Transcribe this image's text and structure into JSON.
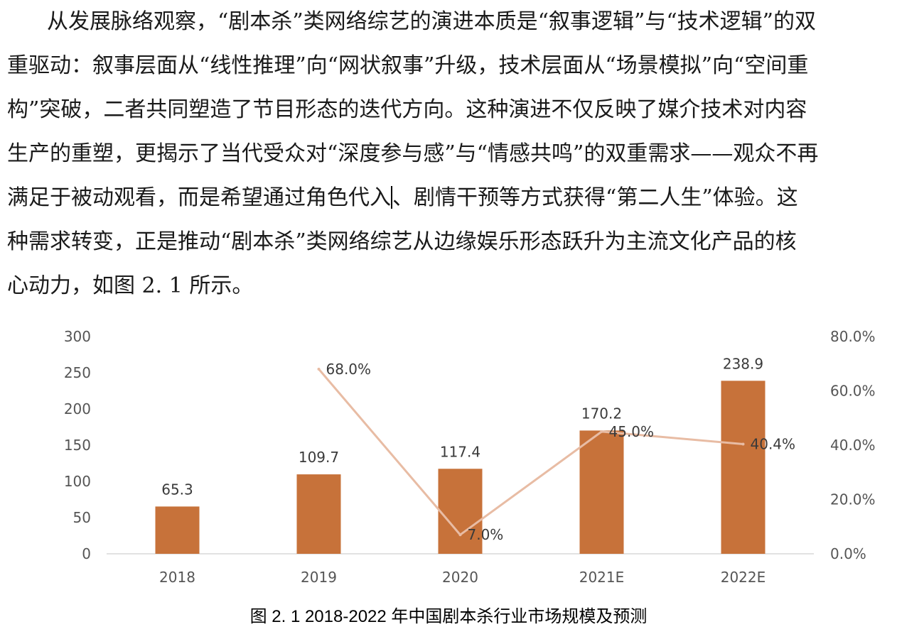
{
  "document": {
    "paragraph_lines": [
      "从发展脉络观察，“剧本杀”类网络综艺的演进本质是“叙事逻辑”与“技术逻辑”的双",
      "重驱动：叙事层面从“线性推理”向“网状叙事”升级，技术层面从“场景模拟”向“空间重",
      "构”突破，二者共同塑造了节目形态的迭代方向。这种演进不仅反映了媒介技术对内容",
      "生产的重塑，更揭示了当代受众对“深度参与感”与“情感共鸣”的双重需求——观众不再",
      "满足于被动观看，而是希望通过角色代入",
      "、剧情干预等方式获得“第二人生”体验。这",
      "种需求转变，正是推动“剧本杀”类网络综艺从边缘娱乐形态跃升为主流文化产品的核",
      "心动力，如图 2. 1 所示。"
    ],
    "caption": "图 2. 1 2018-2022 年中国剧本杀行业市场规模及预测"
  },
  "colors": {
    "bar": "#c7723a",
    "line": "#e8bca4",
    "axis_text": "#555555",
    "axis_line": "#d9d9d9"
  },
  "chart_data": {
    "type": "bar",
    "categories": [
      "2018",
      "2019",
      "2020",
      "2021E",
      "2022E"
    ],
    "values": [
      65.3,
      109.7,
      117.4,
      170.2,
      238.9
    ],
    "value_labels": [
      "65.3",
      "109.7",
      "117.4",
      "170.2",
      "238.9"
    ],
    "ylim": [
      0,
      300
    ],
    "yticks": [
      "0",
      "50",
      "100",
      "150",
      "200",
      "250",
      "300"
    ],
    "secondary": {
      "type": "line",
      "categories": [
        "2019",
        "2020",
        "2021E",
        "2022E"
      ],
      "values": [
        68.0,
        7.0,
        45.0,
        40.4
      ],
      "value_labels": [
        "68.0%",
        "7.0%",
        "45.0%",
        "40.4%"
      ],
      "ylim": [
        0,
        80
      ],
      "yticks": [
        "0.0%",
        "20.0%",
        "40.0%",
        "60.0%",
        "80.0%"
      ]
    },
    "title": "",
    "xlabel": "",
    "ylabel": "",
    "grid": false,
    "legend": "none"
  }
}
